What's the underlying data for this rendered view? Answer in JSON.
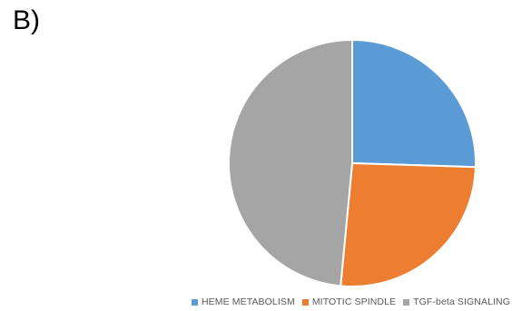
{
  "panel_label": "B)",
  "chart_data": {
    "type": "pie",
    "title": "",
    "series": [
      {
        "categories": [
          "HEME METABOLISM",
          "MITOTIC SPINDLE",
          "TGF-beta SIGNALING"
        ],
        "values": [
          25.5,
          26.0,
          48.5
        ],
        "colors": [
          "#5B9BD5",
          "#ED7D31",
          "#A5A5A5"
        ]
      }
    ],
    "start_angle_deg": 0,
    "direction": "clockwise",
    "legend_position": "bottom",
    "legend": [
      "HEME METABOLISM",
      "MITOTIC SPINDLE",
      "TGF-beta SIGNALING"
    ]
  }
}
